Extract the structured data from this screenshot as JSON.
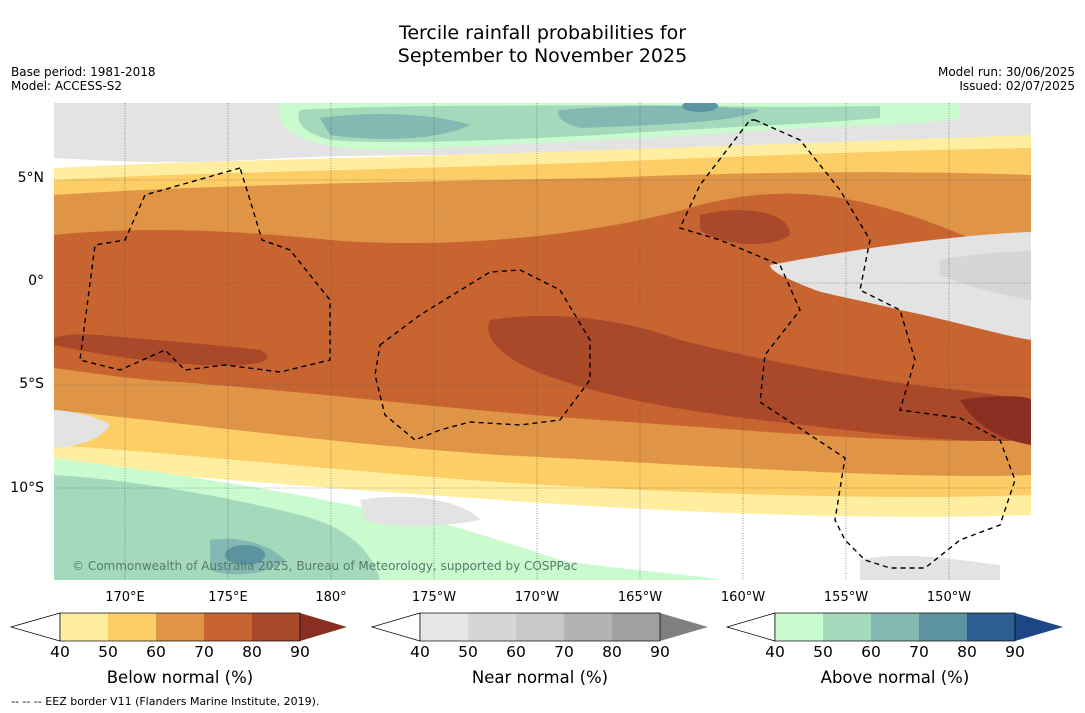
{
  "title": {
    "line1": "Tercile rainfall probabilities for",
    "line2": "September to November 2025"
  },
  "meta_left": {
    "base_period": "Base period: 1981-2018",
    "model": "Model: ACCESS-S2"
  },
  "meta_right": {
    "model_run": "Model run: 30/06/2025",
    "issued": "Issued: 02/07/2025"
  },
  "lat_labels": [
    "5°N",
    "0°",
    "5°S",
    "10°S"
  ],
  "lon_labels": [
    "170°E",
    "175°E",
    "180°",
    "175°W",
    "170°W",
    "165°W",
    "160°W",
    "155°W",
    "150°W"
  ],
  "copyright": "© Commonwealth of Australia 2025, Bureau of Meteorology, supported by COSPPac",
  "colorbars": [
    {
      "label": "Below normal (%)",
      "ticks": [
        "40",
        "50",
        "60",
        "70",
        "80",
        "90"
      ],
      "colors": [
        "#ffffff",
        "#ffeea0",
        "#fdcd66",
        "#df9446",
        "#c86430",
        "#a9492a",
        "#8b2e22"
      ]
    },
    {
      "label": "Near normal (%)",
      "ticks": [
        "40",
        "50",
        "60",
        "70",
        "80",
        "90"
      ],
      "colors": [
        "#ffffff",
        "#e6e6e6",
        "#d6d6d6",
        "#c8c8c8",
        "#b3b3b3",
        "#a0a0a0",
        "#808080"
      ]
    },
    {
      "label": "Above normal (%)",
      "ticks": [
        "40",
        "50",
        "60",
        "70",
        "80",
        "90"
      ],
      "colors": [
        "#ffffff",
        "#c9fbcf",
        "#a4d9bc",
        "#84b8b2",
        "#5b93a1",
        "#2d5f95",
        "#1c4784"
      ]
    }
  ],
  "footnote": "-- -- -- EEZ border V11 (Flanders Marine Institute, 2019)."
}
